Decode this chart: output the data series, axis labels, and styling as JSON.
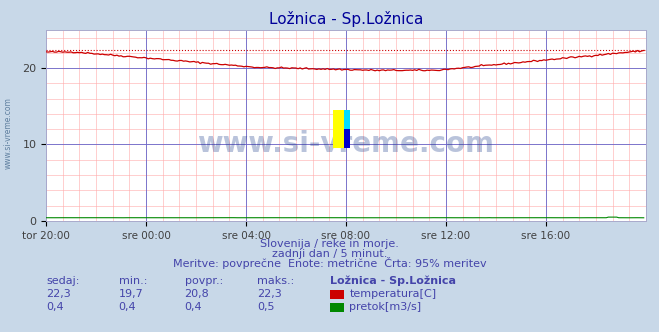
{
  "title": "Ložnica - Sp.Ložnica",
  "title_color": "#000099",
  "bg_color": "#c8d8e8",
  "plot_bg_color": "#ffffff",
  "grid_color_major": "#6666cc",
  "grid_color_minor": "#ffaaaa",
  "xlim": [
    0,
    288
  ],
  "ylim": [
    0,
    25
  ],
  "yticks": [
    0,
    10,
    20
  ],
  "xtick_labels": [
    "tor 20:00",
    "sre 00:00",
    "sre 04:00",
    "sre 08:00",
    "sre 12:00",
    "sre 16:00"
  ],
  "xtick_positions": [
    0,
    48,
    96,
    144,
    192,
    240
  ],
  "temp_color": "#cc0000",
  "flow_color": "#008800",
  "avg_line_color": "#cc0000",
  "avg_value": 22.3,
  "temp_min": 19.7,
  "temp_max": 22.3,
  "temp_avg": 20.8,
  "flow_min": 0.4,
  "flow_max": 0.5,
  "flow_avg": 0.4,
  "flow_current": 0.4,
  "temp_current": 22.3,
  "subtitle1": "Slovenija / reke in morje.",
  "subtitle2": "zadnji dan / 5 minut.",
  "subtitle3": "Meritve: povprečne  Enote: metrične  Črta: 95% meritev",
  "text_color": "#4444aa",
  "watermark": "www.si-vreme.com",
  "watermark_color": "#1a3a8a",
  "legend_title": "Ložnica - Sp.Ložnica",
  "legend_temp_label": "temperatura[C]",
  "legend_flow_label": "pretok[m3/s]",
  "left_label": "www.si-vreme.com",
  "left_label_color": "#6080a0",
  "t_vals": [
    "22,3",
    "19,7",
    "20,8",
    "22,3"
  ],
  "f_vals": [
    "0,4",
    "0,4",
    "0,4",
    "0,5"
  ]
}
